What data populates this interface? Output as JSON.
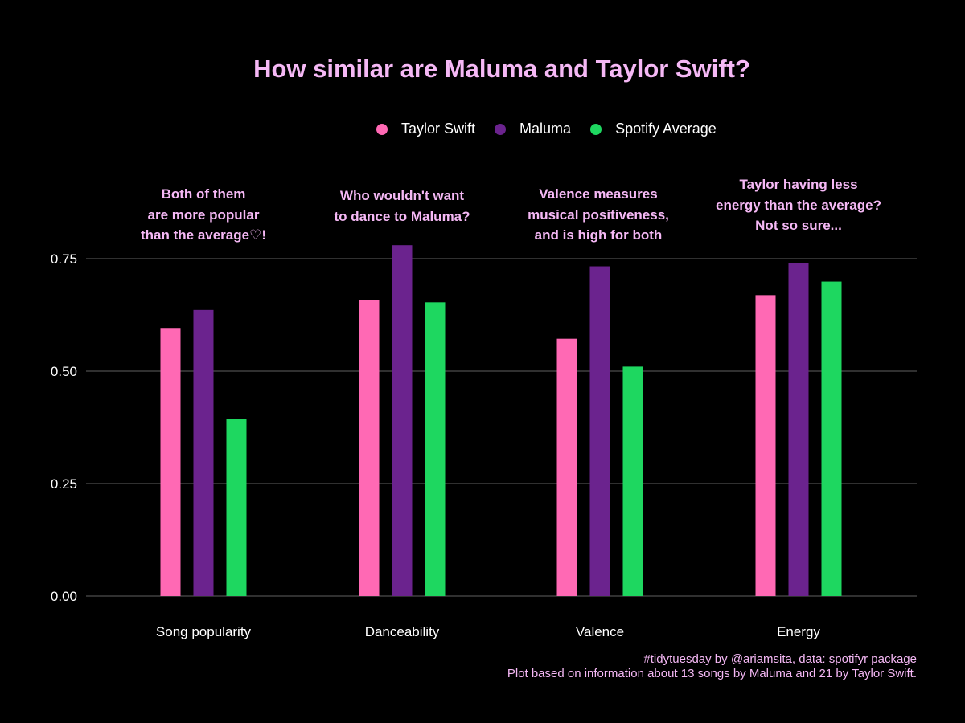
{
  "colors": {
    "background": "#000000",
    "title": "#F5B8F5",
    "annotation": "#F5B8F5",
    "text": "#FFFFFF",
    "grid": "#4d4d4d"
  },
  "chart_data": {
    "type": "bar",
    "title": "How similar are Maluma and Taylor Swift?",
    "xlabel": "",
    "ylabel": "",
    "categories": [
      "Song popularity",
      "Danceability",
      "Valence",
      "Energy"
    ],
    "series": [
      {
        "name": "Taylor Swift",
        "color": "#FF69B4",
        "values": [
          0.596,
          0.658,
          0.572,
          0.669
        ]
      },
      {
        "name": "Maluma",
        "color": "#6B238E",
        "values": [
          0.636,
          0.78,
          0.733,
          0.741
        ]
      },
      {
        "name": "Spotify Average",
        "color": "#1ED760",
        "values": [
          0.394,
          0.653,
          0.51,
          0.699
        ]
      }
    ],
    "ylim": [
      0,
      0.75
    ],
    "yticks": [
      "0.00",
      "0.25",
      "0.50",
      "0.75"
    ],
    "ytick_values": [
      0,
      0.25,
      0.5,
      0.75
    ],
    "grid": true,
    "legend_position": "top",
    "annotations": [
      {
        "lines": [
          "Both of them",
          "are more popular",
          "than the average♡!"
        ]
      },
      {
        "lines": [
          "Who wouldn't want",
          "to dance to Maluma?"
        ]
      },
      {
        "lines": [
          "Valence measures",
          "musical positiveness,",
          "and is high for both"
        ]
      },
      {
        "lines": [
          "Taylor having less",
          "energy than the average?",
          "Not so sure..."
        ]
      }
    ],
    "caption": [
      "#tidytuesday by @ariamsita, data: spotifyr package",
      "Plot based on information about 13 songs by Maluma and 21 by Taylor Swift."
    ]
  }
}
